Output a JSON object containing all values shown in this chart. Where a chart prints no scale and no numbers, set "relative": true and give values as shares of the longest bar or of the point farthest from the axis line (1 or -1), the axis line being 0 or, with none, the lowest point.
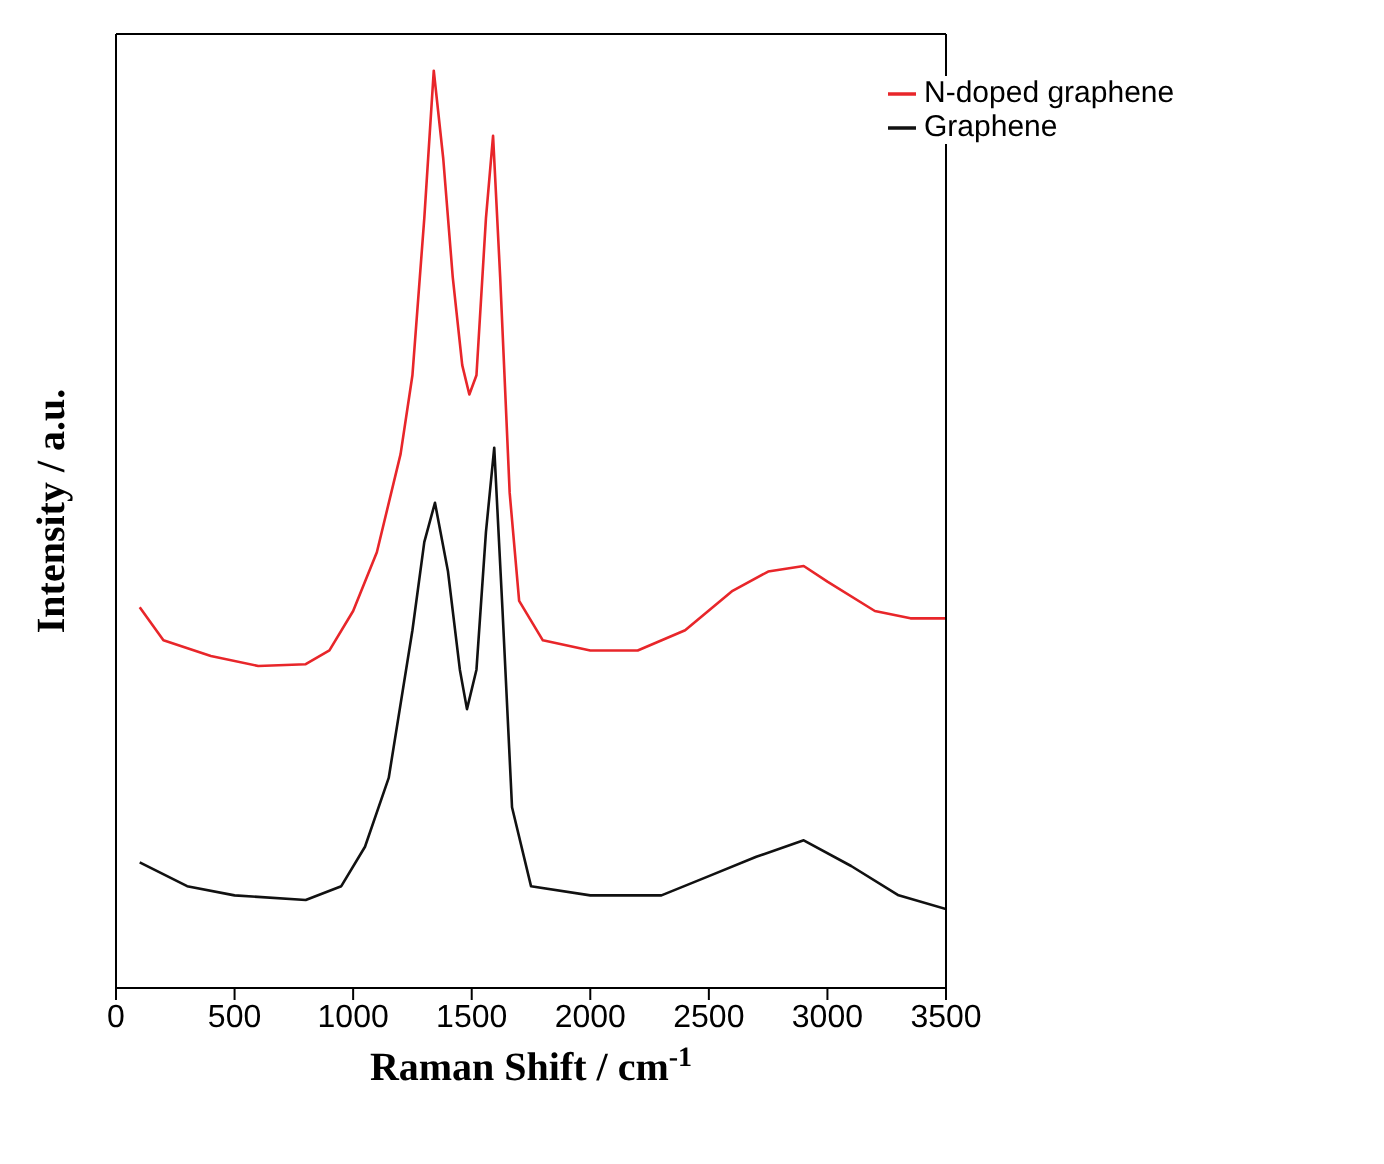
{
  "chart_data": {
    "type": "line",
    "relative": true,
    "xlabel": "Raman Shift / cm$^{-1}$",
    "ylabel": "Intensity / a.u.",
    "xlim": [
      0,
      3500
    ],
    "xticks": [
      0,
      500,
      1000,
      1500,
      2000,
      2500,
      3000,
      3500
    ],
    "legend": "top right",
    "grid": false,
    "marker": "none",
    "line_style": "solid",
    "series": [
      {
        "name": "N-doped graphene",
        "color": "#e8262a",
        "x": [
          100,
          200,
          400,
          600,
          800,
          900,
          1000,
          1100,
          1200,
          1250,
          1300,
          1340,
          1380,
          1420,
          1460,
          1490,
          1520,
          1560,
          1590,
          1620,
          1660,
          1700,
          1800,
          2000,
          2200,
          2400,
          2600,
          2750,
          2900,
          3000,
          3200,
          3350,
          3500
        ],
        "values": [
          0.415,
          0.379,
          0.362,
          0.351,
          0.353,
          0.368,
          0.411,
          0.475,
          0.582,
          0.668,
          0.839,
          1.0,
          0.904,
          0.775,
          0.679,
          0.647,
          0.668,
          0.839,
          0.929,
          0.775,
          0.54,
          0.422,
          0.379,
          0.368,
          0.368,
          0.39,
          0.433,
          0.454,
          0.46,
          0.443,
          0.411,
          0.403,
          0.403
        ]
      },
      {
        "name": "Graphene",
        "color": "#111111",
        "x": [
          100,
          300,
          500,
          800,
          950,
          1050,
          1150,
          1250,
          1300,
          1345,
          1400,
          1450,
          1480,
          1520,
          1560,
          1595,
          1630,
          1670,
          1750,
          2000,
          2300,
          2500,
          2700,
          2900,
          3100,
          3300,
          3500
        ],
        "values": [
          0.137,
          0.111,
          0.101,
          0.096,
          0.111,
          0.154,
          0.229,
          0.39,
          0.486,
          0.529,
          0.454,
          0.347,
          0.304,
          0.347,
          0.497,
          0.589,
          0.411,
          0.197,
          0.111,
          0.101,
          0.101,
          0.122,
          0.143,
          0.161,
          0.133,
          0.101,
          0.086
        ]
      }
    ]
  }
}
